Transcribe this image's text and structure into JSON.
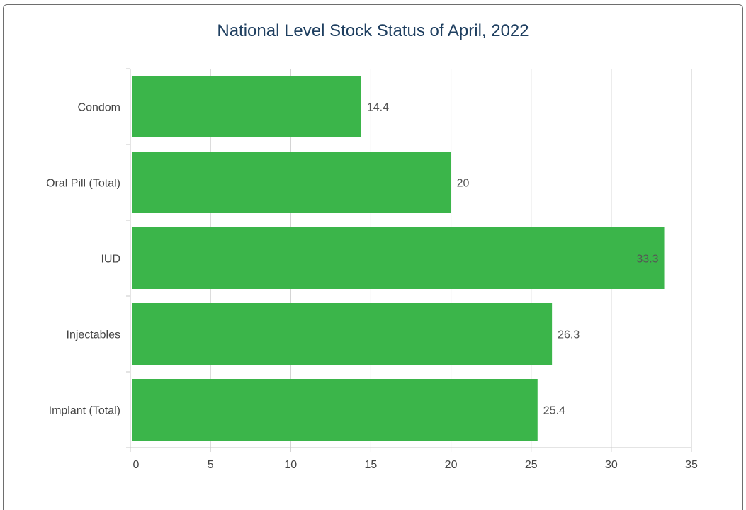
{
  "chart_data": {
    "type": "bar",
    "orientation": "horizontal",
    "title": "National Level Stock Status of April, 2022",
    "xlabel": "",
    "ylabel": "",
    "categories": [
      "Condom",
      "Oral Pill (Total)",
      "IUD",
      "Injectables",
      "Implant (Total)"
    ],
    "values": [
      14.4,
      20,
      33.3,
      26.3,
      25.4
    ],
    "value_labels": [
      "14.4",
      "20",
      "33.3",
      "26.3",
      "25.4"
    ],
    "xlim": [
      0,
      35
    ],
    "xticks": [
      0,
      5,
      10,
      15,
      20,
      25,
      30,
      35
    ],
    "grid": true,
    "legend": "none",
    "bar_color": "#3bb54a"
  }
}
